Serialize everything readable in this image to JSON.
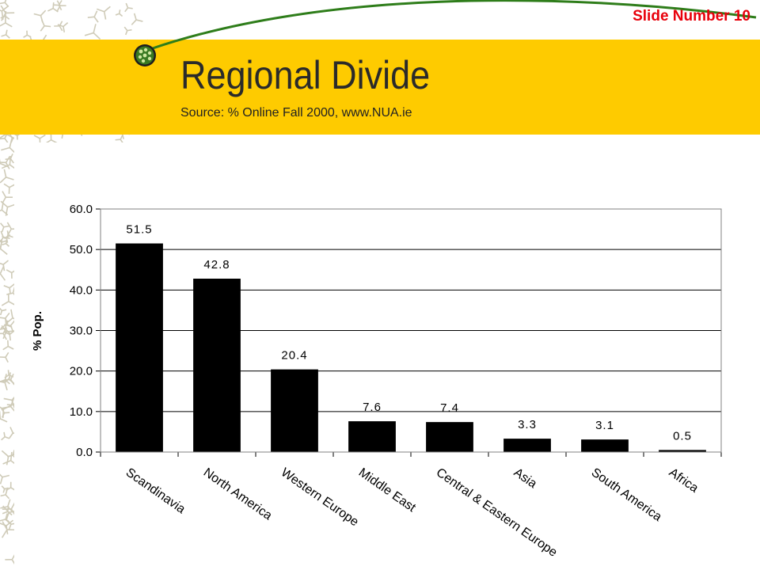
{
  "slide": {
    "number_label": "Slide Number 10",
    "title": "Regional Divide",
    "subtitle": "Source: % Online Fall 2000, www.NUA.ie",
    "colors": {
      "banner": "#fecb00",
      "slide_number": "#e8000b",
      "bars": "#000000",
      "swoosh": "#2e7d1a"
    },
    "icons": [
      "green-dot-bullet-icon"
    ]
  },
  "chart_data": {
    "type": "bar",
    "categories": [
      "Scandinavia",
      "North America",
      "Western Europe",
      "Middle East",
      "Central & Eastern Europe",
      "Asia",
      "South America",
      "Africa"
    ],
    "values": [
      51.5,
      42.8,
      20.4,
      7.6,
      7.4,
      3.3,
      3.1,
      0.5
    ],
    "data_labels": [
      "51.5",
      "42.8",
      "20.4",
      "7.6",
      "7.4",
      "3.3",
      "3.1",
      "0.5"
    ],
    "ylabel": "% Pop.",
    "xlabel": "",
    "ylim": [
      0,
      60
    ],
    "yticks": [
      "0.0",
      "10.0",
      "20.0",
      "30.0",
      "40.0",
      "50.0",
      "60.0"
    ],
    "grid": true,
    "legend": "none"
  }
}
